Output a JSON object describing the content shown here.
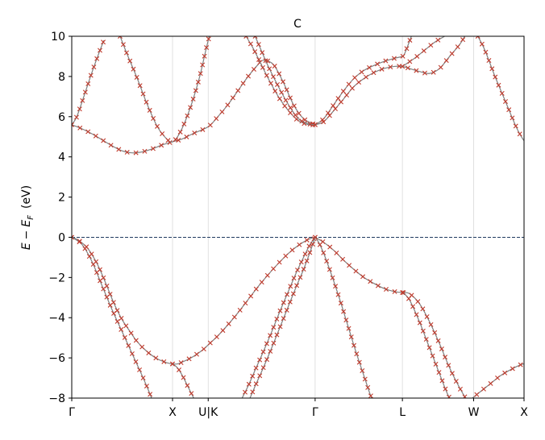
{
  "chart_data": {
    "type": "line",
    "title": "C",
    "ylabel": "E - E_F (eV)",
    "ylabel_parts": {
      "e": "E",
      "minus": "−",
      "ef": "E",
      "sub": "F",
      "unit": "(eV)"
    },
    "xlabel": "",
    "ylim": [
      -8,
      10
    ],
    "yticks": [
      -8,
      -6,
      -4,
      -2,
      0,
      2,
      4,
      6,
      8,
      10
    ],
    "ytick_labels": [
      "−8",
      "−6",
      "−4",
      "−2",
      "0",
      "2",
      "4",
      "6",
      "8",
      "10"
    ],
    "kpoints": [
      {
        "label": "Γ",
        "x": 0
      },
      {
        "label": "X",
        "x": 1.0
      },
      {
        "label": "U|K",
        "x": 1.354
      },
      {
        "label": "Γ",
        "x": 2.415
      },
      {
        "label": "L",
        "x": 3.281
      },
      {
        "label": "W",
        "x": 3.988
      },
      {
        "label": "X",
        "x": 4.488
      }
    ],
    "xlim": [
      0,
      4.488
    ],
    "fermi_level": 0,
    "line_color": "#808080",
    "marker_color": "#c0392b",
    "fermi_color": "#1f3a5f",
    "grid_color": "#d9d9d9",
    "series": [
      {
        "points": [
          [
            0,
            0
          ],
          [
            0.1,
            -0.35
          ],
          [
            0.2,
            -1.2
          ],
          [
            0.3,
            -2.4
          ],
          [
            0.4,
            -3.6
          ],
          [
            0.5,
            -4.7
          ],
          [
            0.6,
            -5.8
          ],
          [
            0.7,
            -6.9
          ],
          [
            0.76,
            -7.6
          ],
          [
            0.8,
            -8.1
          ]
        ]
      },
      {
        "points": [
          [
            0,
            0
          ],
          [
            0.05,
            -0.1
          ],
          [
            0.15,
            -0.5
          ],
          [
            0.25,
            -1.3
          ],
          [
            0.33,
            -2.2
          ],
          [
            0.42,
            -3.3
          ],
          [
            0.5,
            -4.1
          ],
          [
            0.58,
            -4.7
          ],
          [
            0.65,
            -5.2
          ],
          [
            0.75,
            -5.7
          ],
          [
            0.85,
            -6.05
          ],
          [
            0.95,
            -6.25
          ],
          [
            1.0,
            -6.3
          ],
          [
            1.05,
            -6.3
          ],
          [
            1.1,
            -6.2
          ],
          [
            1.2,
            -5.95
          ],
          [
            1.3,
            -5.6
          ],
          [
            1.354,
            -5.35
          ],
          [
            1.45,
            -4.9
          ],
          [
            1.55,
            -4.35
          ],
          [
            1.65,
            -3.75
          ],
          [
            1.75,
            -3.1
          ],
          [
            1.85,
            -2.45
          ],
          [
            1.95,
            -1.85
          ],
          [
            2.05,
            -1.3
          ],
          [
            2.15,
            -0.8
          ],
          [
            2.25,
            -0.4
          ],
          [
            2.35,
            -0.1
          ],
          [
            2.415,
            0
          ]
        ]
      },
      {
        "points": [
          [
            1.0,
            -6.3
          ],
          [
            1.05,
            -6.5
          ],
          [
            1.1,
            -6.9
          ],
          [
            1.15,
            -7.4
          ],
          [
            1.2,
            -7.9
          ],
          [
            1.23,
            -8.2
          ]
        ]
      },
      {
        "points": [
          [
            1.68,
            -8.1
          ],
          [
            1.75,
            -7.4
          ],
          [
            1.82,
            -6.6
          ],
          [
            1.9,
            -5.7
          ],
          [
            1.98,
            -4.75
          ],
          [
            2.06,
            -3.75
          ],
          [
            2.14,
            -2.8
          ],
          [
            2.22,
            -1.85
          ],
          [
            2.3,
            -1.0
          ],
          [
            2.36,
            -0.4
          ],
          [
            2.415,
            0
          ]
        ]
      },
      {
        "points": [
          [
            1.76,
            -8.1
          ],
          [
            1.82,
            -7.4
          ],
          [
            1.9,
            -6.5
          ],
          [
            1.98,
            -5.55
          ],
          [
            2.06,
            -4.55
          ],
          [
            2.14,
            -3.55
          ],
          [
            2.22,
            -2.55
          ],
          [
            2.3,
            -1.6
          ],
          [
            2.36,
            -0.8
          ],
          [
            2.415,
            0
          ]
        ]
      },
      {
        "points": [
          [
            2.415,
            0
          ],
          [
            2.45,
            -0.25
          ],
          [
            2.5,
            -0.8
          ],
          [
            2.58,
            -1.9
          ],
          [
            2.66,
            -3.1
          ],
          [
            2.74,
            -4.4
          ],
          [
            2.82,
            -5.7
          ],
          [
            2.9,
            -6.9
          ],
          [
            2.96,
            -7.8
          ],
          [
            2.99,
            -8.1
          ]
        ]
      },
      {
        "points": [
          [
            2.415,
            0
          ],
          [
            2.5,
            -0.25
          ],
          [
            2.6,
            -0.65
          ],
          [
            2.7,
            -1.15
          ],
          [
            2.8,
            -1.6
          ],
          [
            2.9,
            -2.0
          ],
          [
            3.0,
            -2.3
          ],
          [
            3.1,
            -2.55
          ],
          [
            3.2,
            -2.7
          ],
          [
            3.281,
            -2.75
          ],
          [
            3.35,
            -2.8
          ],
          [
            3.45,
            -3.3
          ],
          [
            3.55,
            -4.2
          ],
          [
            3.65,
            -5.3
          ],
          [
            3.75,
            -6.5
          ],
          [
            3.85,
            -7.5
          ],
          [
            3.92,
            -8.1
          ]
        ]
      },
      {
        "points": [
          [
            3.281,
            -2.75
          ],
          [
            3.35,
            -3.1
          ],
          [
            3.45,
            -4.2
          ],
          [
            3.55,
            -5.5
          ],
          [
            3.65,
            -6.8
          ],
          [
            3.72,
            -7.7
          ],
          [
            3.76,
            -8.1
          ]
        ]
      },
      {
        "points": [
          [
            3.95,
            -8.1
          ],
          [
            4.05,
            -7.7
          ],
          [
            4.15,
            -7.3
          ],
          [
            4.25,
            -6.9
          ],
          [
            4.35,
            -6.6
          ],
          [
            4.45,
            -6.35
          ],
          [
            4.488,
            -6.3
          ]
        ]
      },
      {
        "points": [
          [
            0,
            5.6
          ],
          [
            0.1,
            5.4
          ],
          [
            0.2,
            5.15
          ],
          [
            0.3,
            4.85
          ],
          [
            0.4,
            4.55
          ],
          [
            0.5,
            4.3
          ],
          [
            0.6,
            4.2
          ],
          [
            0.7,
            4.25
          ],
          [
            0.8,
            4.4
          ],
          [
            0.9,
            4.6
          ],
          [
            1.0,
            4.75
          ],
          [
            1.1,
            4.9
          ],
          [
            1.2,
            5.15
          ],
          [
            1.354,
            5.5
          ],
          [
            1.45,
            6.0
          ],
          [
            1.55,
            6.6
          ],
          [
            1.65,
            7.3
          ],
          [
            1.75,
            8.0
          ],
          [
            1.85,
            8.6
          ],
          [
            1.9,
            8.8
          ],
          [
            2.0,
            8.6
          ],
          [
            2.1,
            7.7
          ],
          [
            2.2,
            6.6
          ],
          [
            2.3,
            5.9
          ],
          [
            2.415,
            5.6
          ]
        ]
      },
      {
        "points": [
          [
            0,
            5.6
          ],
          [
            0.05,
            6.0
          ],
          [
            0.12,
            7.0
          ],
          [
            0.2,
            8.2
          ],
          [
            0.28,
            9.3
          ],
          [
            0.32,
            9.8
          ]
        ]
      },
      {
        "points": [
          [
            0.48,
            10
          ],
          [
            0.55,
            9.1
          ],
          [
            0.65,
            7.9
          ],
          [
            0.75,
            6.6
          ],
          [
            0.85,
            5.5
          ],
          [
            0.95,
            4.85
          ],
          [
            1.0,
            4.75
          ],
          [
            1.05,
            5.0
          ],
          [
            1.12,
            5.7
          ],
          [
            1.2,
            6.8
          ],
          [
            1.27,
            8.0
          ],
          [
            1.33,
            9.3
          ],
          [
            1.37,
            10.1
          ]
        ]
      },
      {
        "points": [
          [
            1.73,
            10
          ],
          [
            1.8,
            9.4
          ],
          [
            1.88,
            8.6
          ],
          [
            1.95,
            7.9
          ],
          [
            2.05,
            7.0
          ],
          [
            2.15,
            6.3
          ],
          [
            2.25,
            5.8
          ],
          [
            2.35,
            5.6
          ],
          [
            2.415,
            5.6
          ]
        ]
      },
      {
        "points": [
          [
            1.82,
            10
          ],
          [
            1.88,
            9.3
          ],
          [
            1.95,
            8.5
          ],
          [
            2.05,
            7.5
          ],
          [
            2.15,
            6.6
          ],
          [
            2.25,
            5.9
          ],
          [
            2.35,
            5.65
          ],
          [
            2.415,
            5.6
          ]
        ]
      },
      {
        "points": [
          [
            2.415,
            5.6
          ],
          [
            2.5,
            5.75
          ],
          [
            2.6,
            6.3
          ],
          [
            2.7,
            6.9
          ],
          [
            2.8,
            7.5
          ],
          [
            2.9,
            7.9
          ],
          [
            3.0,
            8.2
          ],
          [
            3.1,
            8.4
          ],
          [
            3.2,
            8.5
          ],
          [
            3.281,
            8.5
          ],
          [
            3.35,
            8.4
          ],
          [
            3.45,
            8.25
          ],
          [
            3.55,
            8.15
          ],
          [
            3.65,
            8.4
          ],
          [
            3.75,
            9.0
          ],
          [
            3.85,
            9.6
          ],
          [
            3.9,
            10.0
          ]
        ]
      },
      {
        "points": [
          [
            2.415,
            5.6
          ],
          [
            2.5,
            5.9
          ],
          [
            2.6,
            6.6
          ],
          [
            2.7,
            7.3
          ],
          [
            2.8,
            7.9
          ],
          [
            2.9,
            8.3
          ],
          [
            3.0,
            8.55
          ],
          [
            3.1,
            8.75
          ],
          [
            3.2,
            8.9
          ],
          [
            3.281,
            9.0
          ],
          [
            3.3,
            9.1
          ],
          [
            3.34,
            9.6
          ],
          [
            3.37,
            10.0
          ]
        ]
      },
      {
        "points": [
          [
            3.281,
            8.5
          ],
          [
            3.4,
            8.9
          ],
          [
            3.5,
            9.3
          ],
          [
            3.6,
            9.7
          ],
          [
            3.7,
            10.0
          ]
        ]
      },
      {
        "points": [
          [
            4.03,
            10.0
          ],
          [
            4.1,
            9.3
          ],
          [
            4.2,
            8.0
          ],
          [
            4.3,
            6.8
          ],
          [
            4.4,
            5.6
          ],
          [
            4.45,
            5.1
          ],
          [
            4.488,
            4.8
          ]
        ]
      }
    ]
  }
}
